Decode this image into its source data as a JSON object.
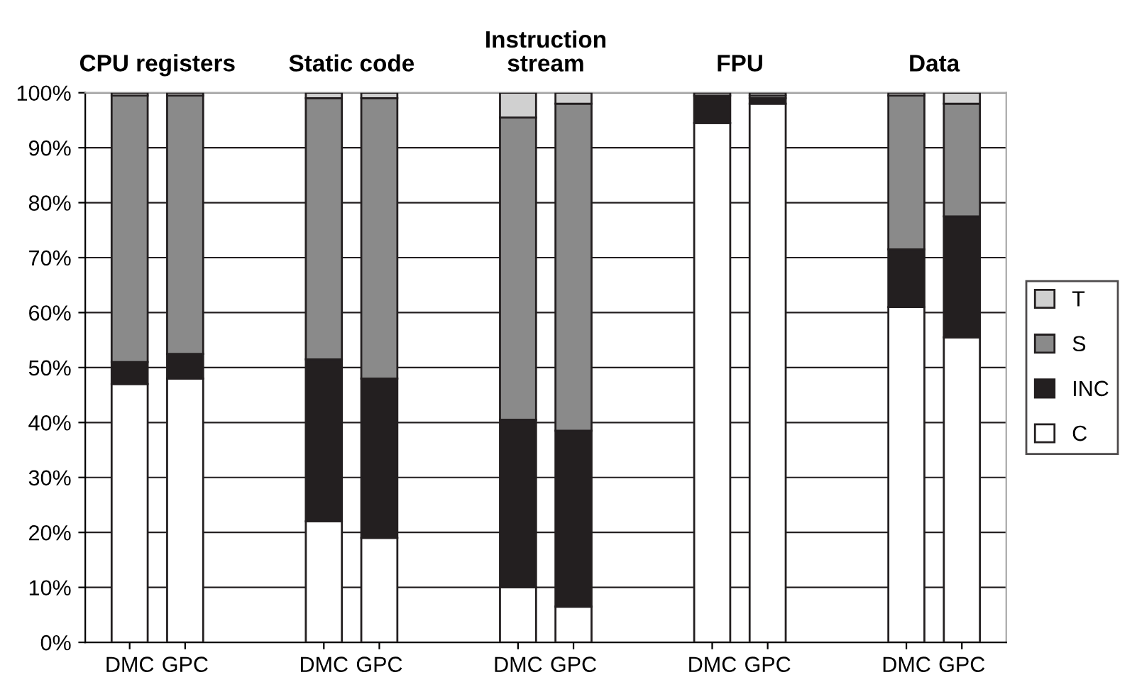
{
  "chart_data": {
    "type": "bar",
    "stacked": true,
    "categories": [
      "DMC",
      "GPC",
      "DMC",
      "GPC",
      "DMC",
      "GPC",
      "DMC",
      "GPC",
      "DMC",
      "GPC"
    ],
    "annotations": [
      "CPU registers",
      "Static code",
      "Instruction\nstream",
      "FPU",
      "Data"
    ],
    "series": [
      {
        "name": "C",
        "color": "#ffffff",
        "values": [
          47,
          48,
          22,
          19,
          10,
          6.5,
          94.5,
          98,
          61,
          55.5
        ]
      },
      {
        "name": "INC",
        "color": "#231f20",
        "values": [
          4,
          4.5,
          29.5,
          29,
          30.5,
          32,
          5,
          1,
          10.5,
          22
        ]
      },
      {
        "name": "S",
        "color": "#8a8a8a",
        "values": [
          48.5,
          47,
          47.5,
          51,
          55,
          59.5,
          0,
          0.5,
          28,
          20.5
        ]
      },
      {
        "name": "T",
        "color": "#d0d0d0",
        "values": [
          0.5,
          0.5,
          1,
          1,
          4.5,
          2,
          0.5,
          0.5,
          0.5,
          2
        ]
      }
    ],
    "ylim": [
      0,
      100
    ],
    "yticks": [
      {
        "value": 0,
        "label": "0%"
      },
      {
        "value": 10,
        "label": "10%"
      },
      {
        "value": 20,
        "label": "20%"
      },
      {
        "value": 30,
        "label": "30%"
      },
      {
        "value": 40,
        "label": "40%"
      },
      {
        "value": 50,
        "label": "50%"
      },
      {
        "value": 60,
        "label": "60%"
      },
      {
        "value": 70,
        "label": "70%"
      },
      {
        "value": 80,
        "label": "80%"
      },
      {
        "value": 90,
        "label": "90%"
      },
      {
        "value": 100,
        "label": "100%"
      }
    ],
    "grid": "y",
    "legend": "right"
  }
}
